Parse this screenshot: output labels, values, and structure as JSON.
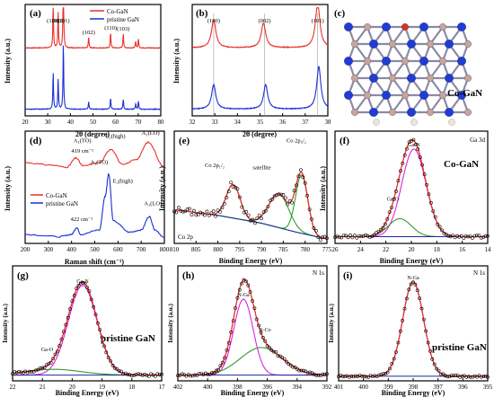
{
  "figure": {
    "panels": {
      "a": {
        "label": "(a)",
        "xlabel": "2θ (degree)",
        "ylabel": "Intensity (a.u.)"
      },
      "b": {
        "label": "(b)",
        "xlabel": "2θ (degree)",
        "ylabel": "Intensity (a.u.)"
      },
      "c": {
        "label": "(c)",
        "caption": "Co-GaN"
      },
      "d": {
        "label": "(d)",
        "xlabel": "Raman shift (cm⁻¹)",
        "ylabel": "Intensity (a.u.)"
      },
      "e": {
        "label": "(e)",
        "xlabel": "Binding Energy (eV)",
        "ylabel": "Intensity (a.u.)",
        "corner": "Co 2p"
      },
      "f": {
        "label": "(f)",
        "xlabel": "Binding Energy (eV)",
        "ylabel": "Intensity (a.u.)",
        "corner": "Ga 3d",
        "sample": "Co-GaN"
      },
      "g": {
        "label": "(g)",
        "xlabel": "Binding Energy (eV)",
        "ylabel": "Intensity (a.u.)",
        "sample": "pristine GaN"
      },
      "h": {
        "label": "(h)",
        "xlabel": "Binding Energy (eV)",
        "ylabel": "Intensity (a.u.)",
        "corner": "N 1s"
      },
      "i": {
        "label": "(i)",
        "xlabel": "Binding Energy (eV)",
        "ylabel": "Intensity (a.u.)",
        "corner": "N 1s",
        "sample": "pristine GaN"
      }
    },
    "colors": {
      "co": "#e8302a",
      "pristine": "#1a2fd6",
      "green": "#2e9e2e",
      "magenta": "#e020e0",
      "navy": "#1f2a9a",
      "axis": "#000000"
    }
  },
  "chart_data": [
    {
      "id": "a",
      "type": "line",
      "xlim": [
        20,
        80
      ],
      "xticks": [
        20,
        30,
        40,
        50,
        60,
        70,
        80
      ],
      "series": [
        {
          "name": "Co-GaN",
          "color": "#e8302a",
          "offset": 0.55,
          "peaks": [
            [
              32.4,
              0.4
            ],
            [
              34.6,
              0.32
            ],
            [
              36.9,
              0.7
            ],
            [
              48.1,
              0.1
            ],
            [
              57.8,
              0.14
            ],
            [
              63.4,
              0.13
            ],
            [
              68.9,
              0.06
            ],
            [
              70.1,
              0.08
            ]
          ]
        },
        {
          "name": "pristine GaN",
          "color": "#1a2fd6",
          "offset": 0.0,
          "peaks": [
            [
              32.4,
              0.33
            ],
            [
              34.6,
              0.27
            ],
            [
              36.9,
              0.6
            ],
            [
              48.1,
              0.07
            ],
            [
              57.8,
              0.1
            ],
            [
              63.4,
              0.09
            ],
            [
              68.9,
              0.05
            ],
            [
              70.1,
              0.07
            ]
          ]
        }
      ],
      "peak_labels": [
        {
          "x": 32.4,
          "text": "(100)"
        },
        {
          "x": 34.6,
          "text": "(002)"
        },
        {
          "x": 36.9,
          "text": "(101)"
        },
        {
          "x": 48.1,
          "text": "(102)"
        },
        {
          "x": 57.8,
          "text": "(110)"
        },
        {
          "x": 63.4,
          "text": "(103)"
        }
      ]
    },
    {
      "id": "b",
      "type": "line",
      "xlim": [
        32,
        38
      ],
      "xticks": [
        32,
        33,
        34,
        35,
        36,
        37,
        38
      ],
      "series": [
        {
          "name": "Co-GaN",
          "color": "#e8302a",
          "offset": 0.55,
          "peaks": [
            [
              32.95,
              0.25,
              0.12
            ],
            [
              35.15,
              0.22,
              0.12
            ],
            [
              37.55,
              0.4,
              0.12
            ]
          ]
        },
        {
          "name": "pristine GaN",
          "color": "#1a2fd6",
          "offset": 0.0,
          "peaks": [
            [
              32.95,
              0.22,
              0.11
            ],
            [
              35.25,
              0.22,
              0.11
            ],
            [
              37.6,
              0.38,
              0.11
            ]
          ]
        }
      ],
      "ref_lines": [
        32.95,
        35.2,
        37.55
      ],
      "peak_labels": [
        {
          "x": 32.95,
          "text": "(100)"
        },
        {
          "x": 35.2,
          "text": "(002)"
        },
        {
          "x": 37.55,
          "text": "(101)"
        }
      ]
    },
    {
      "id": "d",
      "type": "line",
      "xlim": [
        200,
        800
      ],
      "xticks": [
        200,
        300,
        400,
        500,
        600,
        700,
        800
      ],
      "series": [
        {
          "name": "Co-GaN",
          "color": "#e8302a",
          "offset": 0.5,
          "points": [
            [
              200,
              0.22
            ],
            [
              300,
              0.2
            ],
            [
              380,
              0.18
            ],
            [
              419,
              0.26
            ],
            [
              450,
              0.19
            ],
            [
              520,
              0.22
            ],
            [
              570,
              0.34
            ],
            [
              620,
              0.2
            ],
            [
              680,
              0.25
            ],
            [
              730,
              0.4
            ],
            [
              800,
              0.18
            ]
          ]
        },
        {
          "name": "pristine GaN",
          "color": "#1a2fd6",
          "offset": 0.0,
          "points": [
            [
              200,
              0.08
            ],
            [
              350,
              0.06
            ],
            [
              400,
              0.08
            ],
            [
              422,
              0.14
            ],
            [
              440,
              0.08
            ],
            [
              520,
              0.12
            ],
            [
              545,
              0.42
            ],
            [
              560,
              0.62
            ],
            [
              580,
              0.2
            ],
            [
              650,
              0.1
            ],
            [
              700,
              0.12
            ],
            [
              735,
              0.24
            ],
            [
              760,
              0.12
            ],
            [
              800,
              0.05
            ]
          ]
        }
      ],
      "annotations": [
        {
          "text": "419 cm⁻¹"
        },
        {
          "text": "A₁(TO)"
        },
        {
          "text": "E₂(high)"
        },
        {
          "text": "A₁(LO)"
        },
        {
          "text": "422 cm⁻¹"
        },
        {
          "text": "A₁(TO)"
        },
        {
          "text": "E₂(high)"
        },
        {
          "text": "A₁(LO)"
        }
      ]
    },
    {
      "id": "e",
      "type": "scatter",
      "xlim": [
        810,
        775
      ],
      "xticks": [
        810,
        805,
        800,
        795,
        790,
        785,
        780,
        775
      ],
      "annotations": [
        {
          "text": "Co 2p₁/₂"
        },
        {
          "text": "satellite"
        },
        {
          "text": "Co 2p₃/₂"
        }
      ],
      "fit_peaks": [
        {
          "center": 796.5,
          "height": 0.3,
          "width": 1.6,
          "color": "#2e9e2e"
        },
        {
          "center": 786.0,
          "height": 0.3,
          "width": 2.3,
          "color": "#2e9e2e"
        },
        {
          "center": 780.8,
          "height": 0.52,
          "width": 1.4,
          "color": "#2e9e2e"
        }
      ],
      "background": [
        [
          810,
          0.3
        ],
        [
          800,
          0.25
        ],
        [
          790,
          0.18
        ],
        [
          782,
          0.1
        ],
        [
          775,
          0.04
        ]
      ]
    },
    {
      "id": "f",
      "type": "scatter",
      "xlim": [
        26,
        14
      ],
      "xticks": [
        26,
        24,
        22,
        20,
        18,
        16,
        14
      ],
      "fit_peaks": [
        {
          "name": "Ga-N",
          "center": 19.8,
          "height": 0.78,
          "width": 0.95,
          "color": "#e020e0"
        },
        {
          "name": "Ga-O",
          "center": 20.9,
          "height": 0.16,
          "width": 0.9,
          "color": "#2e9e2e"
        }
      ],
      "background": 0.06
    },
    {
      "id": "g",
      "type": "scatter",
      "xlim": [
        22,
        17
      ],
      "xticks": [
        22,
        21,
        20,
        19,
        18,
        17
      ],
      "fit_peaks": [
        {
          "name": "Ga-N",
          "center": 19.65,
          "height": 0.78,
          "width": 0.48,
          "color": "#e020e0"
        },
        {
          "name": "Ga-O",
          "center": 20.6,
          "height": 0.05,
          "width": 0.9,
          "color": "#2e9e2e"
        }
      ],
      "background": 0.05
    },
    {
      "id": "h",
      "type": "scatter",
      "xlim": [
        402,
        392
      ],
      "xticks": [
        402,
        400,
        398,
        396,
        394,
        392
      ],
      "fit_peaks": [
        {
          "name": "N-Ga",
          "center": 397.6,
          "height": 0.66,
          "width": 0.65,
          "color": "#e020e0"
        },
        {
          "name": "N-Co",
          "center": 396.4,
          "height": 0.24,
          "width": 1.4,
          "color": "#2e9e2e"
        }
      ],
      "background": 0.05
    },
    {
      "id": "i",
      "type": "scatter",
      "xlim": [
        401,
        395
      ],
      "xticks": [
        401,
        400,
        399,
        398,
        397,
        396,
        395
      ],
      "fit_peaks": [
        {
          "name": "N-Ga",
          "center": 398.0,
          "height": 0.82,
          "width": 0.42,
          "color": "#e020e0"
        }
      ],
      "background": 0.04
    }
  ]
}
